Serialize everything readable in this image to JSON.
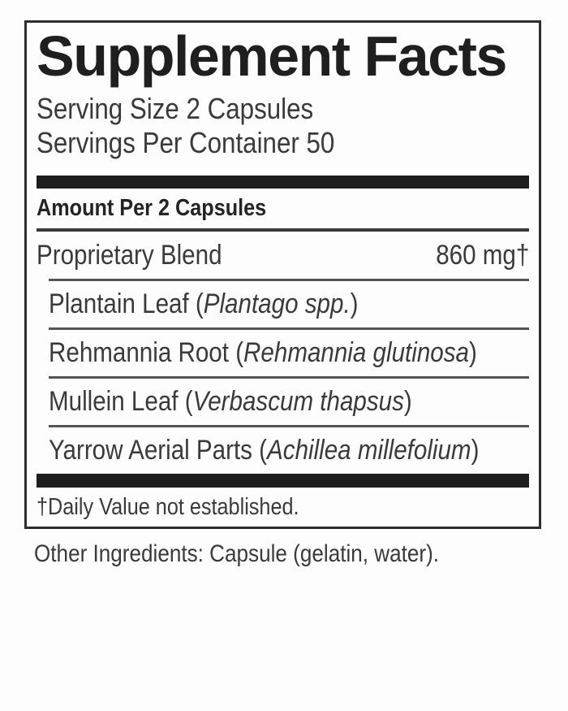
{
  "colors": {
    "page_bg": "#fdfdfd",
    "panel_bg": "#fdfdfd",
    "border": "#2e2e2e",
    "bar": "#1d1d1d",
    "divider_medium": "#3a3a3a",
    "divider_light": "#545454",
    "title_text": "#1f1f1f",
    "body_text": "#3a3a3a",
    "bold_text": "#242424"
  },
  "label": {
    "title": "Supplement Facts",
    "serving_size": "Serving Size 2 Capsules",
    "servings_per_container": "Servings Per Container 50",
    "amount_header": "Amount Per 2 Capsules",
    "blend": {
      "name": "Proprietary Blend",
      "amount": "860 mg†"
    },
    "ingredients": [
      {
        "prefix": "Plantain Leaf (",
        "botanical": "Plantago spp.",
        "suffix": ")"
      },
      {
        "prefix": "Rehmannia Root (",
        "botanical": "Rehmannia glutinosa",
        "suffix": ")"
      },
      {
        "prefix": "Mullein Leaf (",
        "botanical": "Verbascum thapsus",
        "suffix": ")"
      },
      {
        "prefix": "Yarrow Aerial Parts (",
        "botanical": "Achillea millefolium",
        "suffix": ")"
      }
    ],
    "footnote": "†Daily Value not established.",
    "other_ingredients": "Other Ingredients: Capsule (gelatin, water)."
  }
}
